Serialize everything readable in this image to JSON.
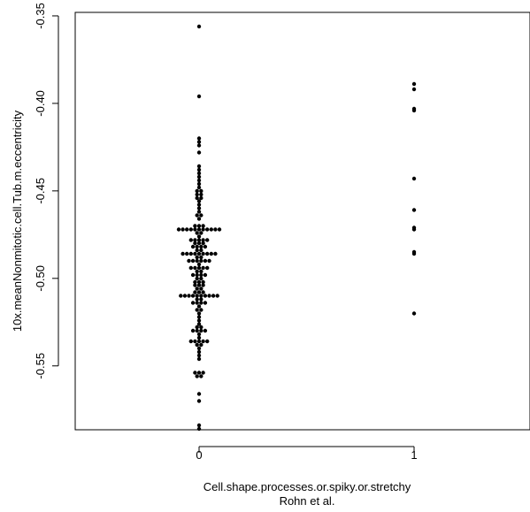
{
  "chart_data": {
    "type": "scatter",
    "style": "beeswarm",
    "xlabel": "Cell.shape.processes.or.spiky.or.stretchy",
    "xlabel2": "Rohn et al.",
    "ylabel": "10x.meanNonmitotic.cell.Tub.m.eccentricity",
    "categories": [
      "0",
      "1"
    ],
    "ylim": [
      -0.5865,
      -0.348
    ],
    "yticks": [
      -0.35,
      -0.4,
      -0.45,
      -0.5,
      -0.55
    ],
    "ytick_labels": [
      "-0.35",
      "-0.40",
      "-0.45",
      "-0.50",
      "-0.55"
    ],
    "grid": false,
    "legend": "none",
    "point_color": "#000000",
    "groups": [
      {
        "category": "0",
        "values": [
          -0.356,
          -0.396,
          -0.42,
          -0.422,
          -0.424,
          -0.428,
          -0.436,
          -0.438,
          -0.44,
          -0.442,
          -0.444,
          -0.446,
          -0.448,
          -0.45,
          -0.45,
          -0.452,
          -0.452,
          -0.454,
          -0.454,
          -0.456,
          -0.458,
          -0.46,
          -0.462,
          -0.464,
          -0.464,
          -0.466,
          -0.47,
          -0.47,
          -0.47,
          -0.472,
          -0.472,
          -0.472,
          -0.472,
          -0.472,
          -0.472,
          -0.472,
          -0.472,
          -0.472,
          -0.472,
          -0.472,
          -0.474,
          -0.474,
          -0.476,
          -0.478,
          -0.478,
          -0.478,
          -0.478,
          -0.478,
          -0.48,
          -0.48,
          -0.48,
          -0.482,
          -0.482,
          -0.482,
          -0.482,
          -0.484,
          -0.484,
          -0.486,
          -0.486,
          -0.486,
          -0.486,
          -0.486,
          -0.486,
          -0.486,
          -0.486,
          -0.486,
          -0.488,
          -0.488,
          -0.49,
          -0.49,
          -0.49,
          -0.49,
          -0.49,
          -0.49,
          -0.492,
          -0.494,
          -0.494,
          -0.494,
          -0.494,
          -0.494,
          -0.496,
          -0.496,
          -0.498,
          -0.498,
          -0.498,
          -0.498,
          -0.5,
          -0.5,
          -0.502,
          -0.502,
          -0.502,
          -0.504,
          -0.504,
          -0.504,
          -0.506,
          -0.506,
          -0.508,
          -0.508,
          -0.508,
          -0.51,
          -0.51,
          -0.51,
          -0.51,
          -0.51,
          -0.51,
          -0.51,
          -0.51,
          -0.51,
          -0.51,
          -0.512,
          -0.512,
          -0.514,
          -0.514,
          -0.514,
          -0.514,
          -0.516,
          -0.518,
          -0.518,
          -0.52,
          -0.522,
          -0.524,
          -0.526,
          -0.528,
          -0.528,
          -0.53,
          -0.53,
          -0.53,
          -0.53,
          -0.532,
          -0.534,
          -0.536,
          -0.536,
          -0.536,
          -0.536,
          -0.536,
          -0.538,
          -0.538,
          -0.54,
          -0.542,
          -0.544,
          -0.546,
          -0.554,
          -0.554,
          -0.554,
          -0.556,
          -0.556,
          -0.566,
          -0.57,
          -0.584,
          -0.586
        ]
      },
      {
        "category": "1",
        "values": [
          -0.389,
          -0.392,
          -0.403,
          -0.404,
          -0.443,
          -0.461,
          -0.471,
          -0.472,
          -0.485,
          -0.486,
          -0.52
        ]
      }
    ]
  }
}
